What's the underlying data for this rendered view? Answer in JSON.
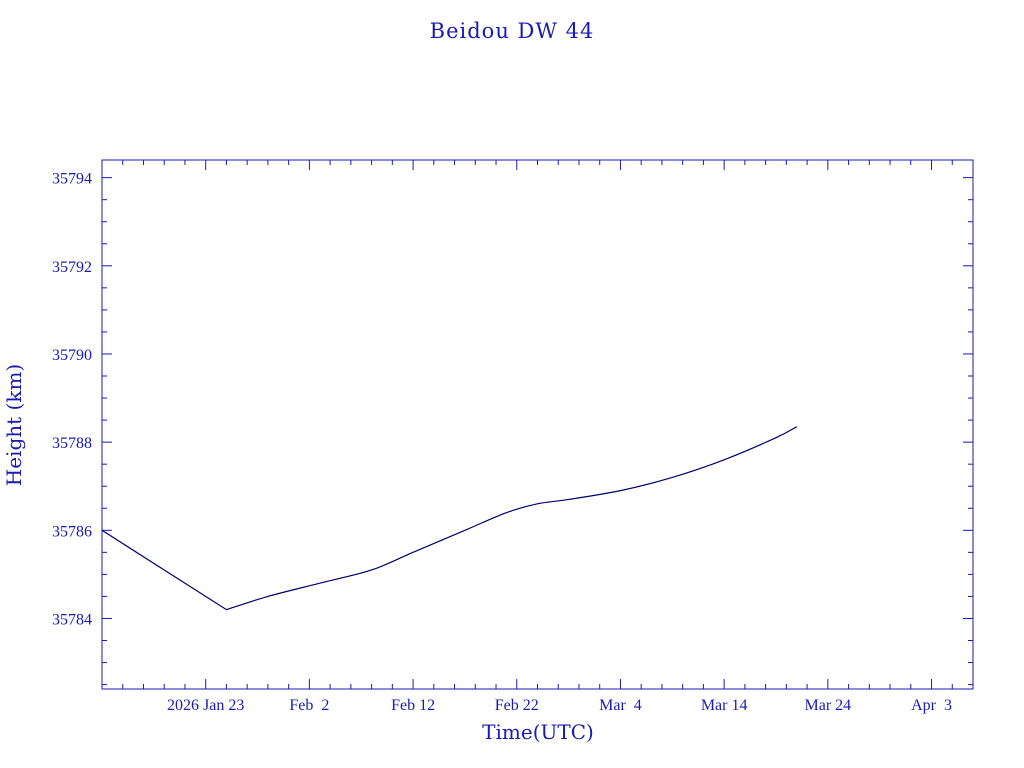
{
  "chart_data": {
    "type": "line",
    "title": "Beidou DW 44",
    "xlabel": "Time(UTC)",
    "ylabel": "Height (km)",
    "xlim": [
      "2026-01-13",
      "2026-04-07"
    ],
    "ylim": [
      35782.4,
      35794.4
    ],
    "x_tick_labels": [
      "2026 Jan 23",
      "Feb  2",
      "Feb 12",
      "Feb 22",
      "Mar  4",
      "Mar 14",
      "Mar 24",
      "Apr  3"
    ],
    "x_tick_dates": [
      "2026-01-23",
      "2026-02-02",
      "2026-02-12",
      "2026-02-22",
      "2026-03-04",
      "2026-03-14",
      "2026-03-24",
      "2026-04-03"
    ],
    "y_tick_labels": [
      "35784",
      "35786",
      "35788",
      "35790",
      "35792",
      "35794"
    ],
    "y_ticks": [
      35784,
      35786,
      35788,
      35790,
      35792,
      35794
    ],
    "grid": false,
    "legend": "none",
    "series": [
      {
        "x": [
          "2026-01-13",
          "2026-01-19",
          "2026-01-25",
          "2026-01-29",
          "2026-02-03",
          "2026-02-08",
          "2026-02-12",
          "2026-02-17",
          "2026-02-21",
          "2026-02-24",
          "2026-02-27",
          "2026-03-04",
          "2026-03-09",
          "2026-03-14",
          "2026-03-19",
          "2026-03-21"
        ],
        "y": [
          35786.0,
          35785.1,
          35784.2,
          35784.5,
          35784.8,
          35785.1,
          35785.5,
          35786.0,
          35786.4,
          35786.6,
          35786.7,
          35786.9,
          35787.2,
          35787.6,
          35788.1,
          35788.35
        ]
      }
    ],
    "colors": {
      "axes": "#1a1ab0",
      "line": "#00006e",
      "text": "#1a1ab0"
    }
  }
}
